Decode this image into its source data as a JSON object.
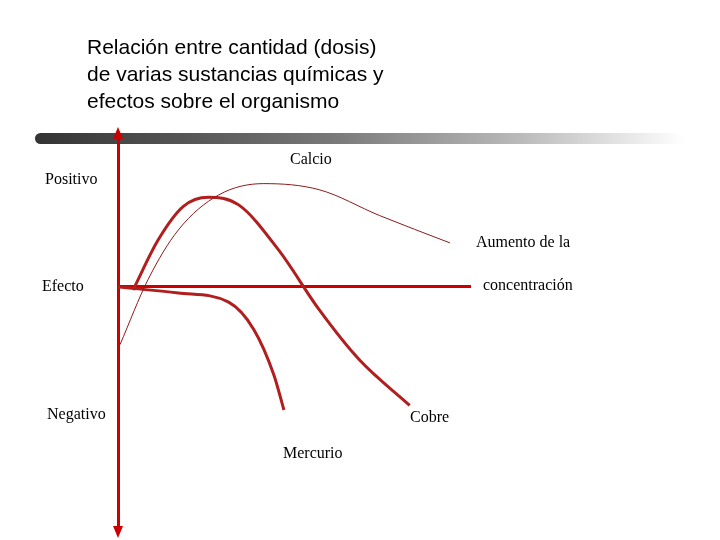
{
  "chart_data": {
    "type": "line",
    "title": [
      "Relación entre cantidad (dosis)",
      "de varias sustancias químicas y",
      "efectos sobre el organismo"
    ],
    "y_positive_label": "Positivo",
    "y_label": "Efecto",
    "y_negative_label": "Negativo",
    "x_label": [
      "Aumento de la",
      "concentración"
    ],
    "xlim": [
      0,
      7
    ],
    "ylim": [
      -16,
      10
    ],
    "grid": false,
    "tick_labels": false,
    "series": [
      {
        "name": "Calcio",
        "color": "#8b1a1a",
        "line_style": "thin",
        "x": [
          0.04,
          0.6,
          1.2,
          2.0,
          2.9,
          4.0,
          5.2,
          6.6
        ],
        "values": [
          -3.8,
          0.5,
          3.75,
          6.05,
          6.8,
          6.4,
          4.7,
          2.9
        ]
      },
      {
        "name": "Cobre",
        "color": "#b01e1e",
        "line_style": "thick",
        "x": [
          0.3,
          0.8,
          1.3,
          1.8,
          2.4,
          3.2,
          4.0,
          4.8,
          5.8
        ],
        "values": [
          -0.2,
          3.1,
          5.3,
          5.9,
          5.4,
          2.4,
          -1.5,
          -4.8,
          -7.8
        ]
      },
      {
        "name": "Mercurio",
        "color": "#b01e1e",
        "line_style": "thick",
        "x": [
          0,
          1.2,
          2.2,
          2.7,
          3.1,
          3.3
        ],
        "values": [
          0,
          -0.4,
          -1.0,
          -2.8,
          -5.8,
          -8.1
        ]
      }
    ]
  }
}
